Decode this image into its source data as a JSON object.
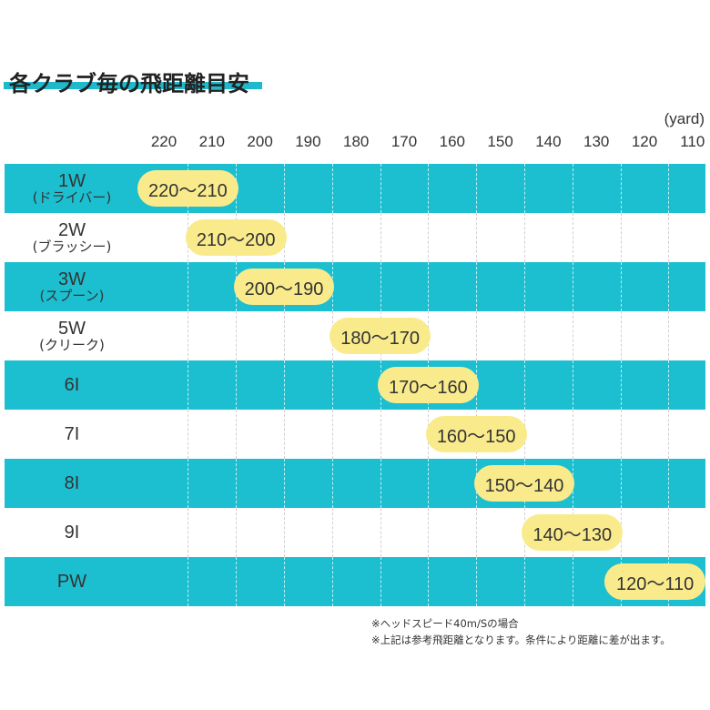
{
  "title": "各クラブ毎の飛距離目安",
  "colors": {
    "band": "#1cbfd0",
    "pill": "#f9eb8c",
    "title_bar": "#1fb9cc"
  },
  "chart_data": {
    "type": "bar",
    "unit": "(yard)",
    "x_ticks": [
      "220",
      "210",
      "200",
      "190",
      "180",
      "170",
      "160",
      "150",
      "140",
      "130",
      "120",
      "110"
    ],
    "xlim": [
      220,
      110
    ],
    "x_reversed": true,
    "categories": [
      "1W",
      "2W",
      "3W",
      "5W",
      "6I",
      "7I",
      "8I",
      "9I",
      "PW"
    ],
    "category_sublabels": [
      "(ドライバー)",
      "(ブラッシー)",
      "(スプーン)",
      "(クリーク)",
      "",
      "",
      "",
      "",
      ""
    ],
    "ranges": [
      {
        "from": 220,
        "to": 210,
        "label": "220〜210"
      },
      {
        "from": 210,
        "to": 200,
        "label": "210〜200"
      },
      {
        "from": 200,
        "to": 190,
        "label": "200〜190"
      },
      {
        "from": 180,
        "to": 170,
        "label": "180〜170"
      },
      {
        "from": 170,
        "to": 160,
        "label": "170〜160"
      },
      {
        "from": 160,
        "to": 150,
        "label": "160〜150"
      },
      {
        "from": 150,
        "to": 140,
        "label": "150〜140"
      },
      {
        "from": 140,
        "to": 130,
        "label": "140〜130"
      },
      {
        "from": 120,
        "to": 110,
        "label": "120〜110"
      }
    ]
  },
  "notes": [
    "※ヘッドスピード40m/Sの場合",
    "※上記は参考飛距離となります。条件により距離に差が出ます。"
  ]
}
